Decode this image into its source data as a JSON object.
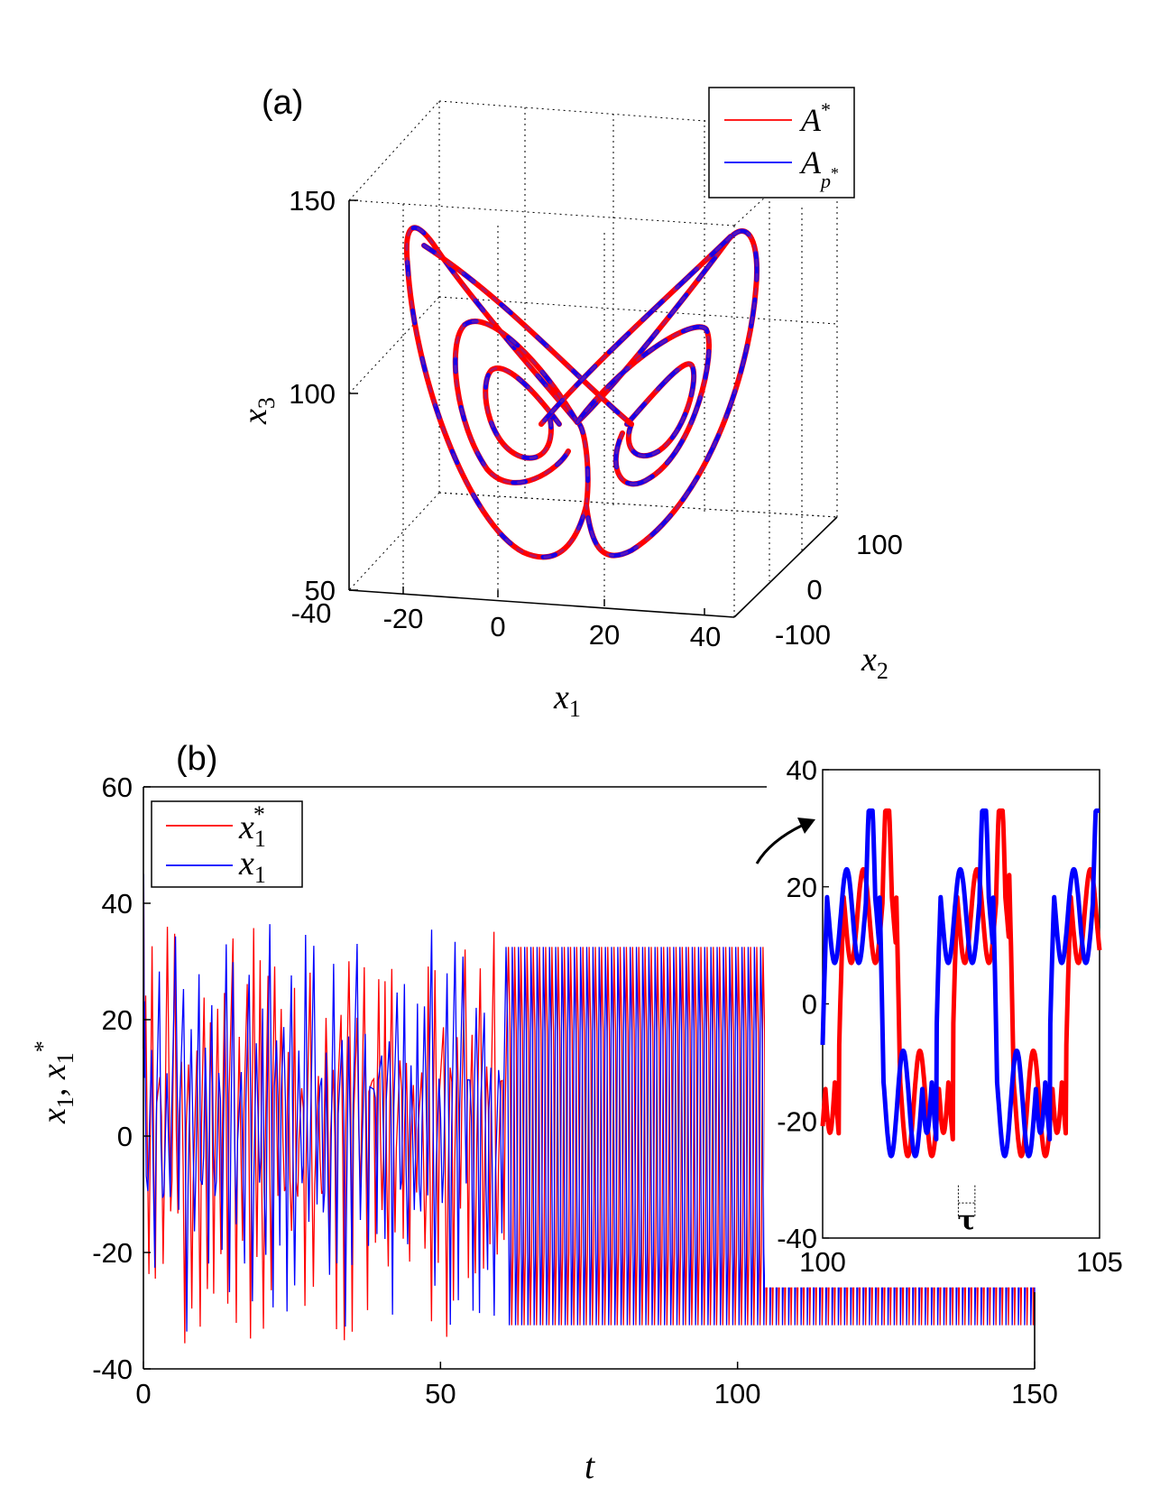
{
  "chart_data": [
    {
      "panel": "(a)",
      "type": "line",
      "projection": "3d",
      "xlabel": "x1",
      "ylabel": "x2",
      "zlabel": "x3",
      "xticks": [
        "-40",
        "-20",
        "0",
        "20",
        "40"
      ],
      "yticks": [
        "100",
        "0",
        "-100"
      ],
      "zticks": [
        "150",
        "100",
        "50"
      ],
      "xlim": [
        -40,
        40
      ],
      "ylim": [
        -100,
        100
      ],
      "zlim": [
        50,
        150
      ],
      "grid": true,
      "legend_position": "top-right",
      "series": [
        {
          "name": "A*",
          "color": "#ff0000",
          "name_main": "A",
          "name_sup": "*"
        },
        {
          "name": "Ap*",
          "color": "#0000ff",
          "name_main": "A",
          "name_sub": "p",
          "name_sup": "*"
        }
      ],
      "attractor": "double-scroll (butterfly), red and blue trajectories overlapping"
    },
    {
      "panel": "(b)",
      "type": "line",
      "xlabel": "t",
      "ylabel": "x1, x1*",
      "xticks": [
        "0",
        "50",
        "100",
        "150"
      ],
      "yticks": [
        "60",
        "40",
        "20",
        "0",
        "-20",
        "-40"
      ],
      "xlim": [
        0,
        150
      ],
      "ylim": [
        -40,
        60
      ],
      "legend_position": "top-left",
      "series": [
        {
          "name": "x1*",
          "color": "#ff0000",
          "name_main": "x",
          "name_sub": "1",
          "name_sup": "*"
        },
        {
          "name": "x1",
          "color": "#0000ff",
          "name_main": "x",
          "name_sub": "1"
        }
      ],
      "transient_until": 60,
      "periodic_max": 32.5,
      "periodic_min": -32.5,
      "periodic_upper_hump": 24,
      "periodic_lower_hump": -26,
      "initial_peak": 45
    },
    {
      "panel": "(b) inset",
      "type": "line",
      "xticks": [
        "100",
        "105"
      ],
      "yticks": [
        "40",
        "20",
        "0",
        "-20",
        "-40"
      ],
      "xlim": [
        100,
        105
      ],
      "ylim": [
        -40,
        40
      ],
      "annotation": "τ",
      "lag": 0.3,
      "series": [
        {
          "name": "x1*",
          "color": "#ff0000"
        },
        {
          "name": "x1",
          "color": "#0000ff"
        }
      ]
    }
  ],
  "labels": {
    "panel_a": "(a)",
    "panel_b": "(b)",
    "a_x": "x1",
    "a_y": "x2",
    "a_z": "x3",
    "b_x": "t",
    "tau": "τ"
  }
}
